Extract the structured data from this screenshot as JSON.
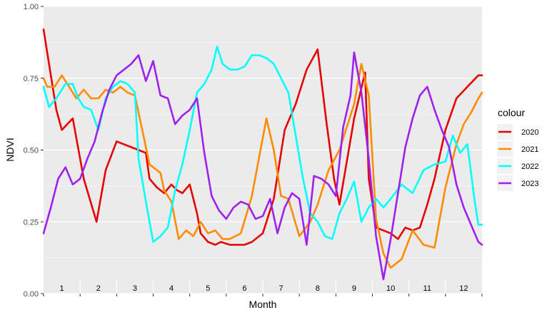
{
  "chart_data": {
    "type": "line",
    "xlabel": "Month",
    "ylabel": "NDVI",
    "xlim": [
      0.5,
      12.5
    ],
    "ylim": [
      0,
      1
    ],
    "y_ticks": [
      0,
      0.25,
      0.5,
      0.75,
      1
    ],
    "y_tick_labels": [
      "0.00",
      "0.25",
      "0.50",
      "0.75",
      "1.00"
    ],
    "month_labels": [
      "1",
      "2",
      "3",
      "4",
      "5",
      "6",
      "7",
      "8",
      "9",
      "10",
      "11",
      "12"
    ],
    "grid": true,
    "legend": {
      "title": "colour",
      "position": "right"
    },
    "series": [
      {
        "name": "2020",
        "color": "#e60000",
        "points": [
          [
            0.5,
            0.92
          ],
          [
            0.7,
            0.76
          ],
          [
            0.85,
            0.64
          ],
          [
            1.0,
            0.57
          ],
          [
            1.3,
            0.61
          ],
          [
            1.6,
            0.4
          ],
          [
            1.95,
            0.25
          ],
          [
            2.2,
            0.43
          ],
          [
            2.5,
            0.53
          ],
          [
            2.9,
            0.51
          ],
          [
            3.3,
            0.49
          ],
          [
            3.4,
            0.4
          ],
          [
            3.6,
            0.37
          ],
          [
            3.8,
            0.35
          ],
          [
            4.0,
            0.38
          ],
          [
            4.15,
            0.36
          ],
          [
            4.3,
            0.35
          ],
          [
            4.5,
            0.38
          ],
          [
            4.7,
            0.28
          ],
          [
            4.8,
            0.21
          ],
          [
            5.0,
            0.18
          ],
          [
            5.2,
            0.17
          ],
          [
            5.35,
            0.18
          ],
          [
            5.6,
            0.17
          ],
          [
            6.0,
            0.17
          ],
          [
            6.2,
            0.18
          ],
          [
            6.5,
            0.21
          ],
          [
            6.8,
            0.33
          ],
          [
            7.1,
            0.57
          ],
          [
            7.4,
            0.66
          ],
          [
            7.7,
            0.78
          ],
          [
            8.0,
            0.85
          ],
          [
            8.25,
            0.59
          ],
          [
            8.45,
            0.4
          ],
          [
            8.6,
            0.31
          ],
          [
            9.0,
            0.61
          ],
          [
            9.3,
            0.77
          ],
          [
            9.4,
            0.4
          ],
          [
            9.6,
            0.23
          ],
          [
            10.0,
            0.21
          ],
          [
            10.2,
            0.19
          ],
          [
            10.4,
            0.23
          ],
          [
            10.6,
            0.22
          ],
          [
            10.8,
            0.23
          ],
          [
            11.0,
            0.31
          ],
          [
            11.2,
            0.4
          ],
          [
            11.5,
            0.57
          ],
          [
            11.8,
            0.68
          ],
          [
            12.1,
            0.72
          ],
          [
            12.4,
            0.76
          ],
          [
            12.5,
            0.76
          ]
        ]
      },
      {
        "name": "2021",
        "color": "#ff8c00",
        "points": [
          [
            0.5,
            0.75
          ],
          [
            0.6,
            0.72
          ],
          [
            0.8,
            0.72
          ],
          [
            1.0,
            0.76
          ],
          [
            1.2,
            0.72
          ],
          [
            1.4,
            0.68
          ],
          [
            1.6,
            0.71
          ],
          [
            1.8,
            0.68
          ],
          [
            2.0,
            0.68
          ],
          [
            2.2,
            0.71
          ],
          [
            2.4,
            0.7
          ],
          [
            2.6,
            0.72
          ],
          [
            2.8,
            0.7
          ],
          [
            3.0,
            0.69
          ],
          [
            3.2,
            0.57
          ],
          [
            3.4,
            0.45
          ],
          [
            3.6,
            0.43
          ],
          [
            3.7,
            0.42
          ],
          [
            3.8,
            0.36
          ],
          [
            4.0,
            0.32
          ],
          [
            4.2,
            0.19
          ],
          [
            4.4,
            0.22
          ],
          [
            4.6,
            0.2
          ],
          [
            4.8,
            0.25
          ],
          [
            5.0,
            0.21
          ],
          [
            5.2,
            0.22
          ],
          [
            5.4,
            0.19
          ],
          [
            5.6,
            0.19
          ],
          [
            5.9,
            0.21
          ],
          [
            6.2,
            0.34
          ],
          [
            6.6,
            0.61
          ],
          [
            6.8,
            0.5
          ],
          [
            7.0,
            0.34
          ],
          [
            7.2,
            0.33
          ],
          [
            7.5,
            0.2
          ],
          [
            7.8,
            0.25
          ],
          [
            8.0,
            0.31
          ],
          [
            8.3,
            0.43
          ],
          [
            8.6,
            0.5
          ],
          [
            9.0,
            0.66
          ],
          [
            9.2,
            0.8
          ],
          [
            9.4,
            0.69
          ],
          [
            9.6,
            0.26
          ],
          [
            9.8,
            0.14
          ],
          [
            10.0,
            0.09
          ],
          [
            10.3,
            0.12
          ],
          [
            10.6,
            0.22
          ],
          [
            10.9,
            0.17
          ],
          [
            11.2,
            0.16
          ],
          [
            11.5,
            0.37
          ],
          [
            11.8,
            0.52
          ],
          [
            12.0,
            0.59
          ],
          [
            12.2,
            0.63
          ],
          [
            12.4,
            0.68
          ],
          [
            12.5,
            0.7
          ]
        ]
      },
      {
        "name": "2022",
        "color": "#00ffff",
        "points": [
          [
            0.5,
            0.72
          ],
          [
            0.65,
            0.65
          ],
          [
            0.85,
            0.68
          ],
          [
            1.1,
            0.73
          ],
          [
            1.3,
            0.73
          ],
          [
            1.45,
            0.68
          ],
          [
            1.6,
            0.65
          ],
          [
            1.8,
            0.64
          ],
          [
            2.0,
            0.57
          ],
          [
            2.2,
            0.68
          ],
          [
            2.4,
            0.72
          ],
          [
            2.6,
            0.74
          ],
          [
            2.8,
            0.73
          ],
          [
            3.0,
            0.7
          ],
          [
            3.1,
            0.47
          ],
          [
            3.3,
            0.32
          ],
          [
            3.5,
            0.18
          ],
          [
            3.7,
            0.2
          ],
          [
            3.9,
            0.23
          ],
          [
            4.1,
            0.36
          ],
          [
            4.3,
            0.45
          ],
          [
            4.5,
            0.57
          ],
          [
            4.7,
            0.7
          ],
          [
            4.9,
            0.73
          ],
          [
            5.1,
            0.78
          ],
          [
            5.25,
            0.86
          ],
          [
            5.4,
            0.8
          ],
          [
            5.6,
            0.78
          ],
          [
            5.8,
            0.78
          ],
          [
            6.0,
            0.79
          ],
          [
            6.2,
            0.83
          ],
          [
            6.4,
            0.83
          ],
          [
            6.6,
            0.82
          ],
          [
            6.8,
            0.8
          ],
          [
            7.0,
            0.75
          ],
          [
            7.2,
            0.7
          ],
          [
            7.4,
            0.55
          ],
          [
            7.6,
            0.4
          ],
          [
            7.8,
            0.28
          ],
          [
            8.0,
            0.25
          ],
          [
            8.2,
            0.2
          ],
          [
            8.4,
            0.19
          ],
          [
            8.6,
            0.28
          ],
          [
            8.8,
            0.33
          ],
          [
            9.0,
            0.39
          ],
          [
            9.2,
            0.25
          ],
          [
            9.4,
            0.3
          ],
          [
            9.6,
            0.33
          ],
          [
            9.8,
            0.3
          ],
          [
            10.0,
            0.33
          ],
          [
            10.3,
            0.38
          ],
          [
            10.6,
            0.35
          ],
          [
            10.9,
            0.43
          ],
          [
            11.2,
            0.45
          ],
          [
            11.5,
            0.46
          ],
          [
            11.7,
            0.55
          ],
          [
            11.9,
            0.49
          ],
          [
            12.1,
            0.52
          ],
          [
            12.3,
            0.32
          ],
          [
            12.4,
            0.24
          ],
          [
            12.5,
            0.24
          ]
        ]
      },
      {
        "name": "2023",
        "color": "#a020f0",
        "points": [
          [
            0.5,
            0.21
          ],
          [
            0.7,
            0.3
          ],
          [
            0.9,
            0.4
          ],
          [
            1.1,
            0.44
          ],
          [
            1.3,
            0.38
          ],
          [
            1.5,
            0.4
          ],
          [
            1.7,
            0.47
          ],
          [
            1.9,
            0.53
          ],
          [
            2.1,
            0.63
          ],
          [
            2.3,
            0.71
          ],
          [
            2.5,
            0.76
          ],
          [
            2.7,
            0.78
          ],
          [
            2.9,
            0.8
          ],
          [
            3.1,
            0.83
          ],
          [
            3.3,
            0.74
          ],
          [
            3.5,
            0.81
          ],
          [
            3.7,
            0.69
          ],
          [
            3.9,
            0.68
          ],
          [
            4.1,
            0.59
          ],
          [
            4.3,
            0.62
          ],
          [
            4.5,
            0.64
          ],
          [
            4.7,
            0.68
          ],
          [
            4.9,
            0.49
          ],
          [
            5.1,
            0.34
          ],
          [
            5.3,
            0.29
          ],
          [
            5.5,
            0.26
          ],
          [
            5.7,
            0.3
          ],
          [
            5.9,
            0.32
          ],
          [
            6.1,
            0.31
          ],
          [
            6.3,
            0.26
          ],
          [
            6.5,
            0.27
          ],
          [
            6.7,
            0.33
          ],
          [
            6.9,
            0.21
          ],
          [
            7.1,
            0.3
          ],
          [
            7.3,
            0.35
          ],
          [
            7.5,
            0.33
          ],
          [
            7.7,
            0.17
          ],
          [
            7.9,
            0.41
          ],
          [
            8.1,
            0.4
          ],
          [
            8.3,
            0.38
          ],
          [
            8.5,
            0.34
          ],
          [
            8.7,
            0.58
          ],
          [
            8.9,
            0.69
          ],
          [
            9.0,
            0.84
          ],
          [
            9.2,
            0.7
          ],
          [
            9.4,
            0.47
          ],
          [
            9.6,
            0.2
          ],
          [
            9.8,
            0.05
          ],
          [
            10.0,
            0.19
          ],
          [
            10.2,
            0.35
          ],
          [
            10.4,
            0.51
          ],
          [
            10.6,
            0.61
          ],
          [
            10.8,
            0.69
          ],
          [
            11.0,
            0.72
          ],
          [
            11.2,
            0.64
          ],
          [
            11.4,
            0.57
          ],
          [
            11.6,
            0.51
          ],
          [
            11.8,
            0.38
          ],
          [
            12.0,
            0.3
          ],
          [
            12.2,
            0.24
          ],
          [
            12.4,
            0.18
          ],
          [
            12.5,
            0.17
          ]
        ]
      }
    ]
  }
}
